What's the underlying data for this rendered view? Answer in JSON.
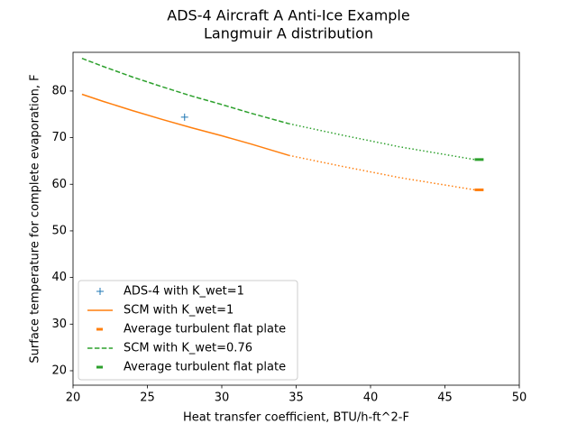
{
  "chart_data": {
    "type": "line",
    "title": "ADS-4 Aircraft A Anti-Ice Example",
    "subtitle": "Langmuir A distribution",
    "x_label": "Heat transfer coefficient, BTU/h-ft^2-F",
    "y_label": "Surface temperature for complete evaporation, F",
    "xlim": [
      20,
      50
    ],
    "xticks": [
      20,
      25,
      30,
      35,
      40,
      45,
      50
    ],
    "ylim": [
      16.9,
      88.3
    ],
    "yticks": [
      20,
      30,
      40,
      50,
      60,
      70,
      80
    ],
    "legend": "lower left",
    "series": [
      {
        "name": "ADS-4 with K_wet=1",
        "color": "#1f77b4",
        "linestyle": "none",
        "marker": "+",
        "x": [
          27.5
        ],
        "values": [
          74.4
        ]
      },
      {
        "name": "SCM with K_wet=1",
        "color": "#ff7f0e",
        "linestyle": "solid",
        "linewidth": 1.5,
        "x": [
          20.6,
          22,
          24,
          26,
          28,
          30,
          32,
          34.5
        ],
        "values": [
          79.3,
          77.8,
          75.8,
          73.9,
          72.1,
          70.4,
          68.6,
          66.2
        ]
      },
      {
        "name": "Average turbulent flat plate",
        "color": "#ff7f0e",
        "linestyle": "solid",
        "linewidth": 3,
        "x": [
          47,
          47.6
        ],
        "values": [
          58.8,
          58.8
        ]
      },
      {
        "name": "SCM with K_wet=0.76",
        "color": "#2ca02c",
        "linestyle": "dashed",
        "linewidth": 1.5,
        "x": [
          20.6,
          22,
          24,
          26,
          28,
          30,
          32,
          34.5
        ],
        "values": [
          87.0,
          85.3,
          83.0,
          80.9,
          78.9,
          77.1,
          75.2,
          73.0
        ]
      },
      {
        "name": "Average turbulent flat plate",
        "color": "#2ca02c",
        "linestyle": "solid",
        "linewidth": 3,
        "x": [
          47,
          47.6
        ],
        "values": [
          65.3,
          65.3
        ]
      },
      {
        "color": "#ff7f0e",
        "linestyle": "dotted",
        "linewidth": 1.5,
        "x": [
          34.5,
          38,
          42,
          47
        ],
        "values": [
          66.2,
          63.9,
          61.4,
          58.8
        ]
      },
      {
        "color": "#2ca02c",
        "linestyle": "dotted",
        "linewidth": 1.5,
        "x": [
          34.5,
          38,
          42,
          47
        ],
        "values": [
          73.0,
          70.6,
          68.0,
          65.3
        ]
      }
    ]
  }
}
